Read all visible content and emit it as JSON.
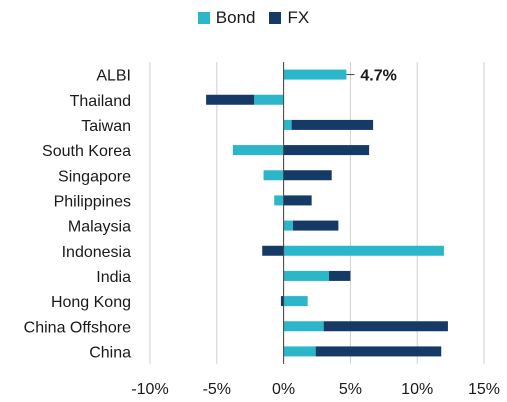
{
  "chart_data": {
    "type": "bar",
    "orientation": "horizontal",
    "stacked": true,
    "categories": [
      "ALBI",
      "Thailand",
      "Taiwan",
      "South Korea",
      "Singapore",
      "Philippines",
      "Malaysia",
      "Indonesia",
      "India",
      "Hong Kong",
      "China Offshore",
      "China"
    ],
    "series": [
      {
        "name": "Bond",
        "color": "#2bb7c9",
        "values": [
          4.7,
          -2.2,
          0.6,
          -3.8,
          -1.5,
          -0.7,
          0.7,
          12.0,
          3.4,
          1.8,
          3.0,
          2.4
        ]
      },
      {
        "name": "FX",
        "color": "#163a66",
        "values": [
          0.0,
          -3.6,
          6.1,
          6.4,
          3.6,
          2.1,
          3.4,
          -1.6,
          1.6,
          -0.2,
          9.3,
          9.4
        ]
      }
    ],
    "annotations": [
      {
        "category": "ALBI",
        "text": "4.7%"
      }
    ],
    "xlim": [
      -10,
      15
    ],
    "xticks": [
      "-10%",
      "-5%",
      "0%",
      "5%",
      "10%",
      "15%"
    ],
    "xtick_values": [
      -10,
      -5,
      0,
      5,
      10,
      15
    ],
    "grid": "vertical",
    "legend_position": "top-center"
  }
}
